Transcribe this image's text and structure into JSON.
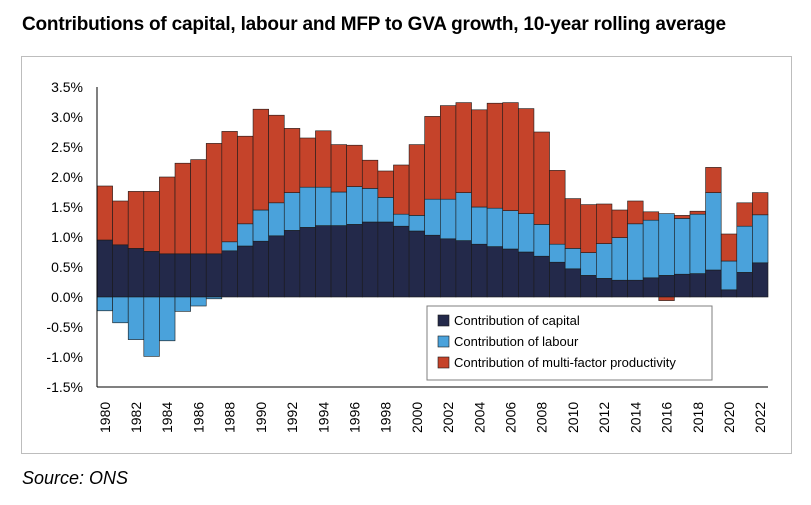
{
  "chart_data": {
    "type": "bar",
    "stacked": true,
    "title": "Contributions of capital, labour and MFP to GVA growth, 10-year rolling average",
    "xlabel": "",
    "ylabel": "",
    "ylim": [
      -0.015,
      0.035
    ],
    "yticks": [
      "3.5%",
      "3.0%",
      "2.5%",
      "2.0%",
      "1.5%",
      "1.0%",
      "0.5%",
      "0.0%",
      "-0.5%",
      "-1.0%",
      "-1.5%"
    ],
    "ytick_values": [
      0.035,
      0.03,
      0.025,
      0.02,
      0.015,
      0.01,
      0.005,
      0.0,
      -0.005,
      -0.01,
      -0.015
    ],
    "categories": [
      "1980",
      "1981",
      "1982",
      "1983",
      "1984",
      "1985",
      "1986",
      "1987",
      "1988",
      "1989",
      "1990",
      "1991",
      "1992",
      "1993",
      "1994",
      "1995",
      "1996",
      "1997",
      "1998",
      "1999",
      "2000",
      "2001",
      "2002",
      "2003",
      "2004",
      "2005",
      "2006",
      "2007",
      "2008",
      "2009",
      "2010",
      "2011",
      "2012",
      "2013",
      "2014",
      "2015",
      "2016",
      "2017",
      "2018",
      "2019",
      "2020",
      "2021",
      "2022"
    ],
    "xtick_labels": [
      "1980",
      "1982",
      "1984",
      "1986",
      "1988",
      "1990",
      "1992",
      "1994",
      "1996",
      "1998",
      "2000",
      "2002",
      "2004",
      "2006",
      "2008",
      "2010",
      "2012",
      "2014",
      "2016",
      "2018",
      "2020",
      "2022"
    ],
    "series": [
      {
        "name": "Contribution of capital",
        "color": "#23294a",
        "values": [
          0.0095,
          0.0087,
          0.0081,
          0.0076,
          0.0072,
          0.0072,
          0.0072,
          0.0072,
          0.0077,
          0.0085,
          0.0093,
          0.0102,
          0.0111,
          0.0116,
          0.0119,
          0.0119,
          0.0121,
          0.0125,
          0.0125,
          0.0118,
          0.011,
          0.0103,
          0.0097,
          0.0094,
          0.0088,
          0.0084,
          0.008,
          0.0075,
          0.0068,
          0.0058,
          0.0047,
          0.0036,
          0.0031,
          0.0028,
          0.0028,
          0.0032,
          0.0036,
          0.0038,
          0.0039,
          0.0045,
          0.0012,
          0.0041,
          0.0057
        ]
      },
      {
        "name": "Contribution of labour",
        "color": "#4aa2db",
        "values": [
          -0.0023,
          -0.0043,
          -0.0071,
          -0.0099,
          -0.0073,
          -0.0024,
          -0.0015,
          -0.0003,
          0.0015,
          0.0037,
          0.0052,
          0.0055,
          0.0063,
          0.0067,
          0.0064,
          0.0056,
          0.0063,
          0.0056,
          0.0041,
          0.002,
          0.0026,
          0.006,
          0.0066,
          0.008,
          0.0062,
          0.0064,
          0.0064,
          0.0064,
          0.0053,
          0.003,
          0.0034,
          0.0038,
          0.0058,
          0.0071,
          0.0094,
          0.0096,
          0.0103,
          0.0093,
          0.0099,
          0.0129,
          0.0048,
          0.0077,
          0.008
        ]
      },
      {
        "name": "Contribution of multi-factor productivity",
        "color": "#c5432a",
        "values": [
          0.009,
          0.0073,
          0.0095,
          0.01,
          0.0128,
          0.0151,
          0.0157,
          0.0184,
          0.0184,
          0.0146,
          0.0168,
          0.0146,
          0.0107,
          0.0082,
          0.0094,
          0.0079,
          0.0069,
          0.0047,
          0.0044,
          0.0082,
          0.0118,
          0.0138,
          0.0156,
          0.015,
          0.0162,
          0.0175,
          0.018,
          0.0175,
          0.0154,
          0.0123,
          0.0083,
          0.008,
          0.0066,
          0.0046,
          0.0038,
          0.0014,
          -0.0006,
          0.0005,
          0.0005,
          0.0042,
          0.0045,
          0.0039,
          0.0037
        ]
      }
    ],
    "legend": "bottom-right"
  },
  "source": "Source: ONS"
}
